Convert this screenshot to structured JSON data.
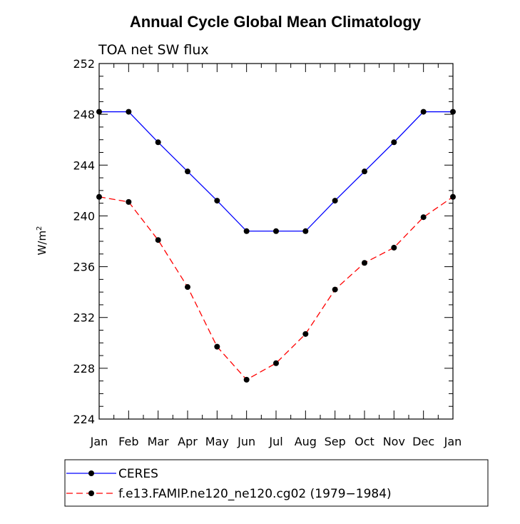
{
  "chart_data": {
    "type": "line",
    "title": "Annual Cycle Global Mean Climatology",
    "subtitle": "TOA net SW flux",
    "xlabel": "",
    "ylabel": "W/m",
    "ylabel_superscript": "2",
    "categories": [
      "Jan",
      "Feb",
      "Mar",
      "Apr",
      "May",
      "Jun",
      "Jul",
      "Aug",
      "Sep",
      "Oct",
      "Nov",
      "Dec",
      "Jan"
    ],
    "ylim": [
      224,
      252
    ],
    "yticks": [
      224,
      228,
      232,
      236,
      240,
      244,
      248,
      252
    ],
    "ytick_labels": [
      "224",
      "228",
      "232",
      "236",
      "240",
      "244",
      "248",
      "252"
    ],
    "grid": false,
    "legend_position": "bottom",
    "series": [
      {
        "name": "CERES",
        "color": "#0000ff",
        "dash": "solid",
        "marker": "filled-circle",
        "values": [
          248.2,
          248.2,
          245.8,
          243.5,
          241.2,
          238.8,
          238.8,
          238.8,
          241.2,
          243.5,
          245.8,
          248.2,
          248.2
        ]
      },
      {
        "name": "f.e13.FAMIP.ne120_ne120.cg02 (1979−1984)",
        "color": "#ff0000",
        "dash": "dashed",
        "marker": "filled-circle",
        "values": [
          241.5,
          241.1,
          238.1,
          234.4,
          229.7,
          227.1,
          228.4,
          230.7,
          234.2,
          236.3,
          237.5,
          239.9,
          241.5
        ]
      }
    ]
  }
}
